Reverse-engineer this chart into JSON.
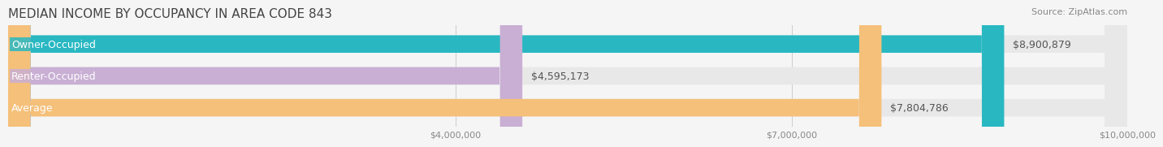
{
  "title": "MEDIAN INCOME BY OCCUPANCY IN AREA CODE 843",
  "source": "Source: ZipAtlas.com",
  "categories": [
    "Owner-Occupied",
    "Renter-Occupied",
    "Average"
  ],
  "values": [
    8900879,
    4595173,
    7804786
  ],
  "bar_colors": [
    "#29b8c2",
    "#c9afd4",
    "#f5c07a"
  ],
  "label_colors": [
    "#29b8c2",
    "#c9afd4",
    "#f5c07a"
  ],
  "value_labels": [
    "$8,900,879",
    "$4,595,173",
    "$7,804,786"
  ],
  "xlim": [
    0,
    10000000
  ],
  "xticks": [
    0,
    4000000,
    7000000,
    10000000
  ],
  "xtick_labels": [
    "",
    "$4,000,000",
    "$7,000,000",
    "$10,000,000"
  ],
  "bar_height": 0.55,
  "background_color": "#f5f5f5",
  "bar_bg_color": "#e8e8e8",
  "title_fontsize": 11,
  "source_fontsize": 8,
  "label_fontsize": 9,
  "value_fontsize": 9,
  "tick_fontsize": 8
}
